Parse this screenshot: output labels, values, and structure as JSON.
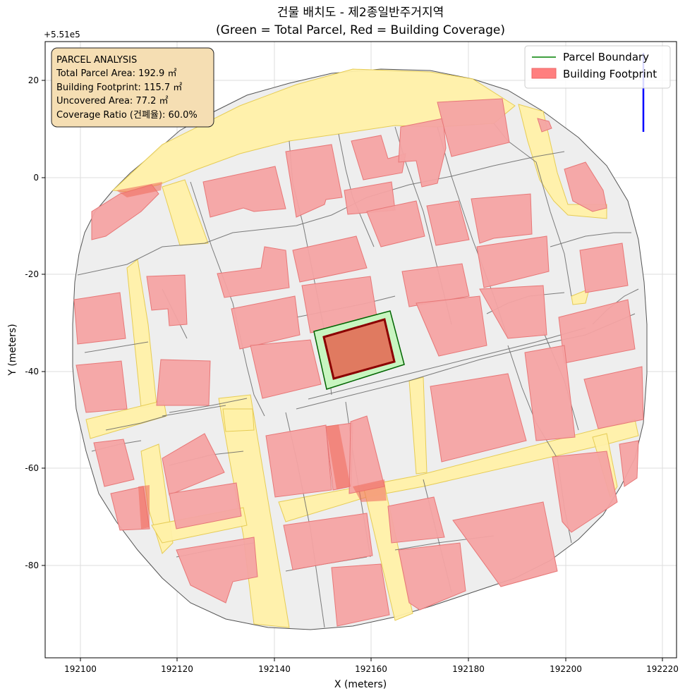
{
  "title": {
    "line1": "건물 배치도 - 제2종일반주거지역",
    "line2": "(Green = Total Parcel, Red = Building Coverage)"
  },
  "axes": {
    "xlabel": "X (meters)",
    "ylabel": "Y (meters)",
    "x_ticks": [
      "192100",
      "192120",
      "192140",
      "192160",
      "192180",
      "192200",
      "192220"
    ],
    "y_ticks": [
      "20",
      "0",
      "-20",
      "-40",
      "-60",
      "-80"
    ],
    "y_offset": "+5.51e5"
  },
  "info_box": {
    "heading": "PARCEL ANALYSIS",
    "parcel_area": "Total Parcel Area: 192.9 ㎡",
    "footprint": "Building Footprint: 115.7 ㎡",
    "uncovered": "Uncovered Area: 77.2 ㎡",
    "coverage": "Coverage Ratio (건폐율): 60.0%"
  },
  "legend": {
    "items": [
      {
        "label": "Parcel Boundary",
        "color": "#008000"
      },
      {
        "label": "Building Footprint",
        "color": "#ff7f7f"
      }
    ],
    "placement": "top-right"
  },
  "colors": {
    "road": "#fff0a8",
    "parcel_bg": "#eeeeee",
    "building": "#f4a3a3",
    "target_parcel": "#c8f5c0",
    "target_building": "#e07a60",
    "north_arrow": "#0000ff"
  },
  "chart_data": {
    "type": "map",
    "x_range": [
      192093,
      192222
    ],
    "y_range": [
      -99,
      28
    ],
    "y_offset": 551000,
    "grid": true,
    "target_parcel_polygon": [
      [
        192151,
        -36.8
      ],
      [
        192164,
        -32.2
      ],
      [
        192166,
        -38.8
      ],
      [
        192152,
        -42.4
      ]
    ],
    "target_building_polygon": [
      [
        192152,
        -37.4
      ],
      [
        192162,
        -34.2
      ],
      [
        192163,
        -39.6
      ],
      [
        192153,
        -42.0
      ]
    ],
    "north_arrow": {
      "x": 192216,
      "y_from": 9,
      "y_to": 25
    }
  }
}
